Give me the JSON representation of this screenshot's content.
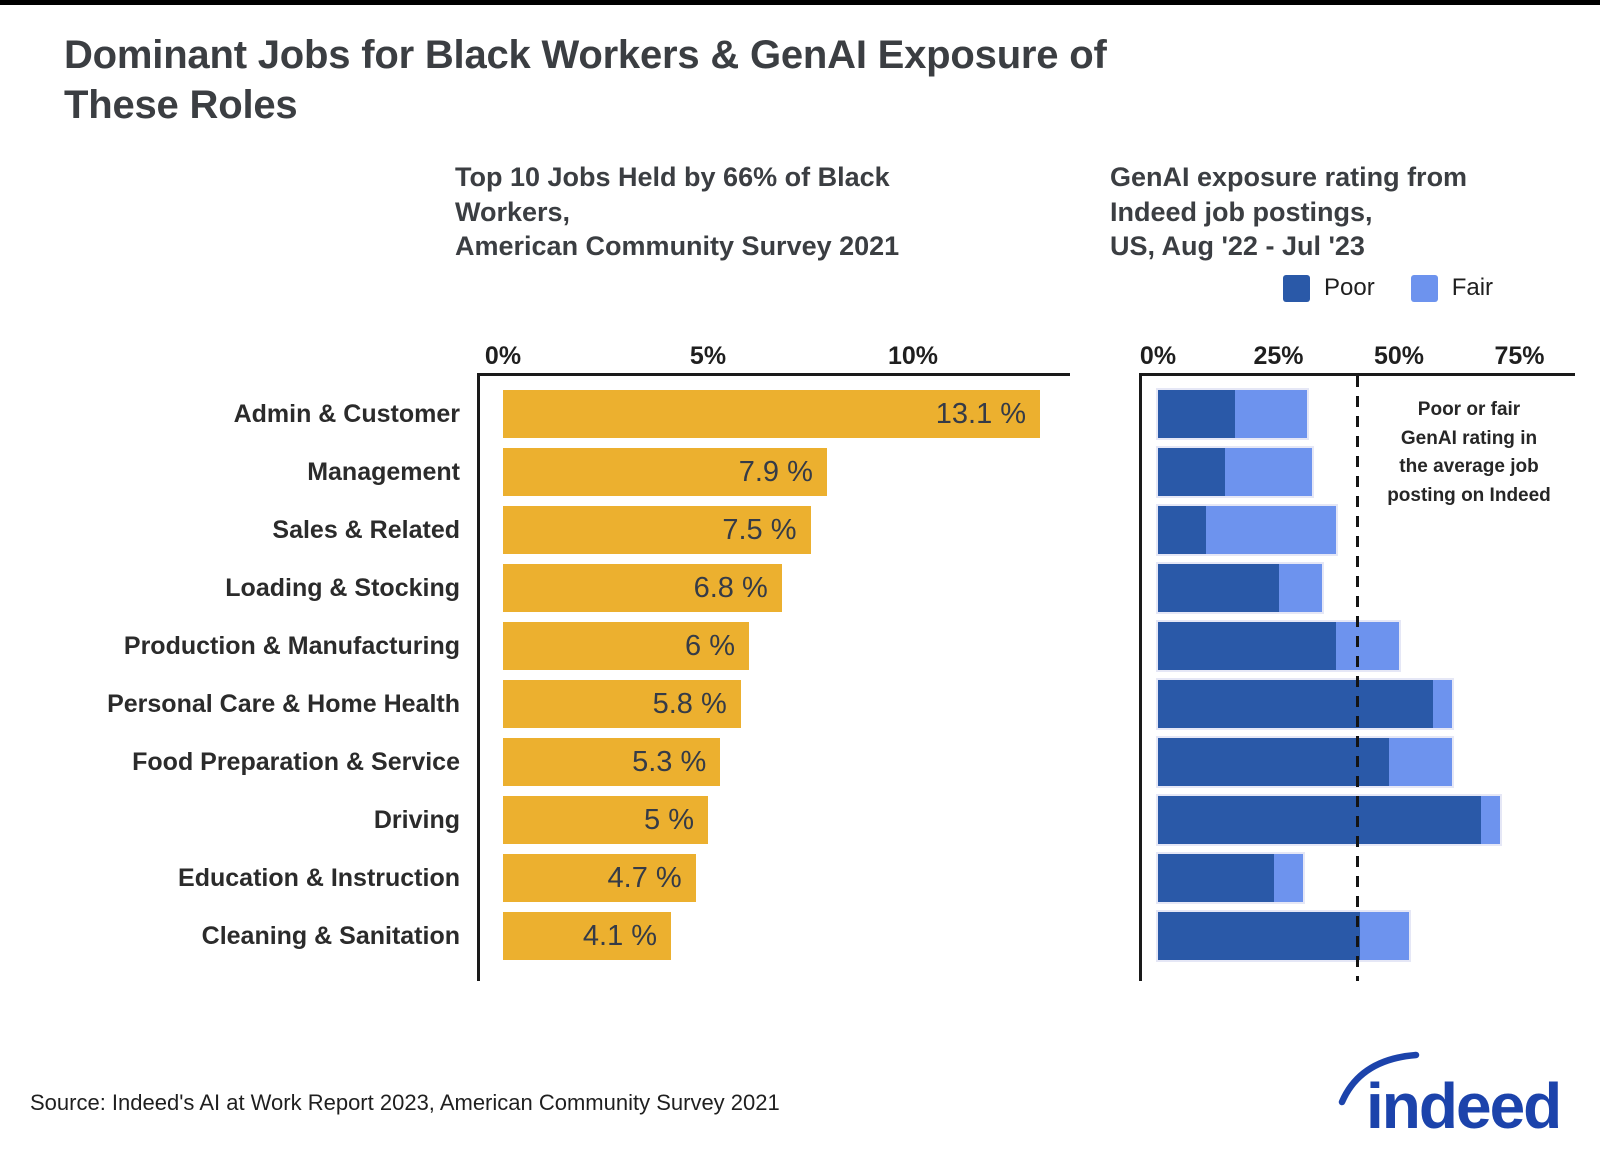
{
  "page": {
    "title": "Dominant Jobs for Black Workers & GenAI Exposure of\nThese Roles",
    "source": "Source: Indeed's AI at Work Report 2023, American Community Survey 2021",
    "logo_text": "indeed"
  },
  "chart_data": [
    {
      "type": "bar",
      "orientation": "horizontal",
      "title": "Top 10 Jobs Held by 66% of Black\nWorkers,\nAmerican Community Survey 2021",
      "categories": [
        "Admin & Customer",
        "Management",
        "Sales & Related",
        "Loading & Stocking",
        "Production & Manufacturing",
        "Personal Care & Home Health",
        "Food Preparation & Service",
        "Driving",
        "Education & Instruction",
        "Cleaning & Sanitation"
      ],
      "values": [
        13.1,
        7.9,
        7.5,
        6.8,
        6,
        5.8,
        5.3,
        5,
        4.7,
        4.1
      ],
      "value_labels": [
        "13.1 %",
        "7.9 %",
        "7.5 %",
        "6.8 %",
        "6 %",
        "5.8 %",
        "5.3 %",
        "5 %",
        "4.7 %",
        "4.1 %"
      ],
      "xticks": [
        "0%",
        "5%",
        "10%"
      ],
      "xtick_values": [
        0,
        5,
        10
      ],
      "xlim": [
        0,
        13.8
      ],
      "ylabel": "",
      "xlabel": "",
      "grid": false,
      "bar_color": "#ECB02F",
      "unit": "percent of Black workers"
    },
    {
      "type": "stacked-bar",
      "orientation": "horizontal",
      "title": "GenAI exposure rating from\nIndeed job postings,\nUS, Aug '22 - Jul '23",
      "categories": [
        "Admin & Customer",
        "Management",
        "Sales & Related",
        "Loading & Stocking",
        "Production & Manufacturing",
        "Personal Care & Home Health",
        "Food Preparation & Service",
        "Driving",
        "Education & Instruction",
        "Cleaning & Sanitation"
      ],
      "series": [
        {
          "name": "Poor",
          "color": "#2A59A8",
          "values": [
            16,
            14,
            10,
            25,
            37,
            57,
            48,
            67,
            24,
            42
          ]
        },
        {
          "name": "Fair",
          "color": "#6D93EE",
          "values": [
            15,
            18,
            27,
            9,
            13,
            4,
            13,
            4,
            6,
            10
          ]
        }
      ],
      "xticks": [
        "0%",
        "25%",
        "50%",
        "75%"
      ],
      "xtick_values": [
        0,
        25,
        50,
        75
      ],
      "xlim": [
        0,
        87
      ],
      "grid": false,
      "legend_position": "top-right",
      "legend": [
        "Poor",
        "Fair"
      ],
      "reference_line": {
        "value": 41,
        "style": "dashed",
        "annotation": "Poor or fair\nGenAI rating in\nthe average job\nposting on Indeed"
      },
      "unit": "percent of job postings"
    }
  ]
}
